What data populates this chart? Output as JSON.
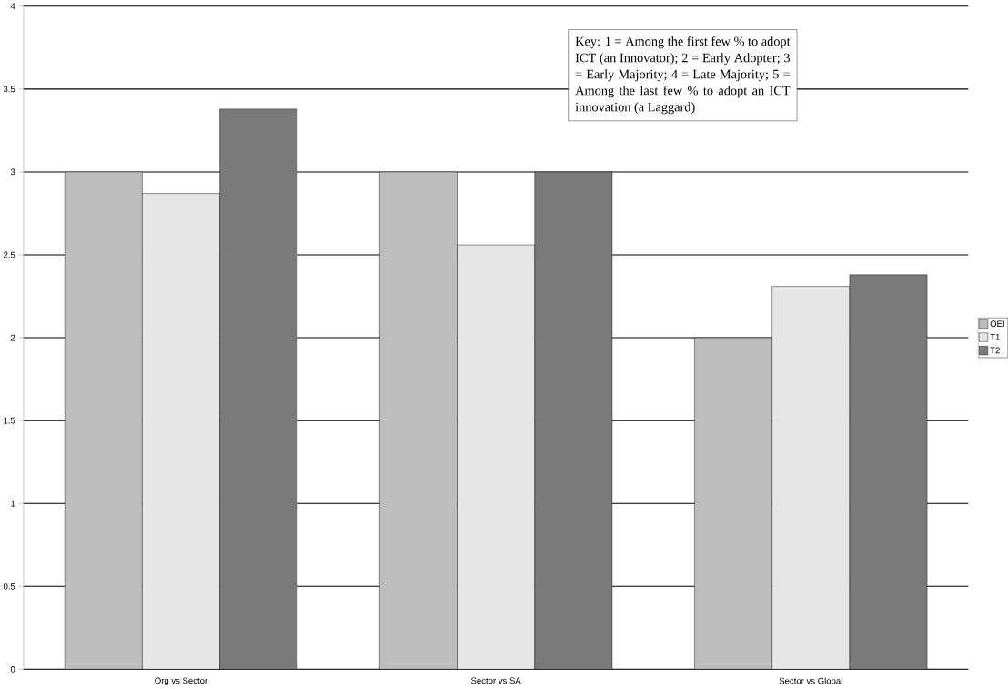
{
  "chart_data": {
    "type": "bar",
    "categories": [
      "Org vs Sector",
      "Sector vs SA",
      "Sector vs Global"
    ],
    "series": [
      {
        "name": "OEI",
        "color": "#bdbdbd",
        "values": [
          3.0,
          3.0,
          2.0
        ]
      },
      {
        "name": "T1",
        "color": "#e6e6e6",
        "values": [
          2.87,
          2.56,
          2.31
        ]
      },
      {
        "name": "T2",
        "color": "#7a7a7a",
        "values": [
          3.38,
          3.0,
          2.38
        ]
      }
    ],
    "ylim": [
      0,
      4
    ],
    "yticks": [
      0,
      0.5,
      1,
      1.5,
      2,
      2.5,
      3,
      3.5,
      4
    ],
    "grid": "y",
    "legend": "right",
    "annotations": [
      "Key: 1 = Among the first few % to adopt ICT (an Innovator); 2 = Early Adopter; 3 = Early Majority; 4 = Late Majority; 5 = Among the last few % to adopt an ICT innovation (a Laggard)"
    ]
  }
}
